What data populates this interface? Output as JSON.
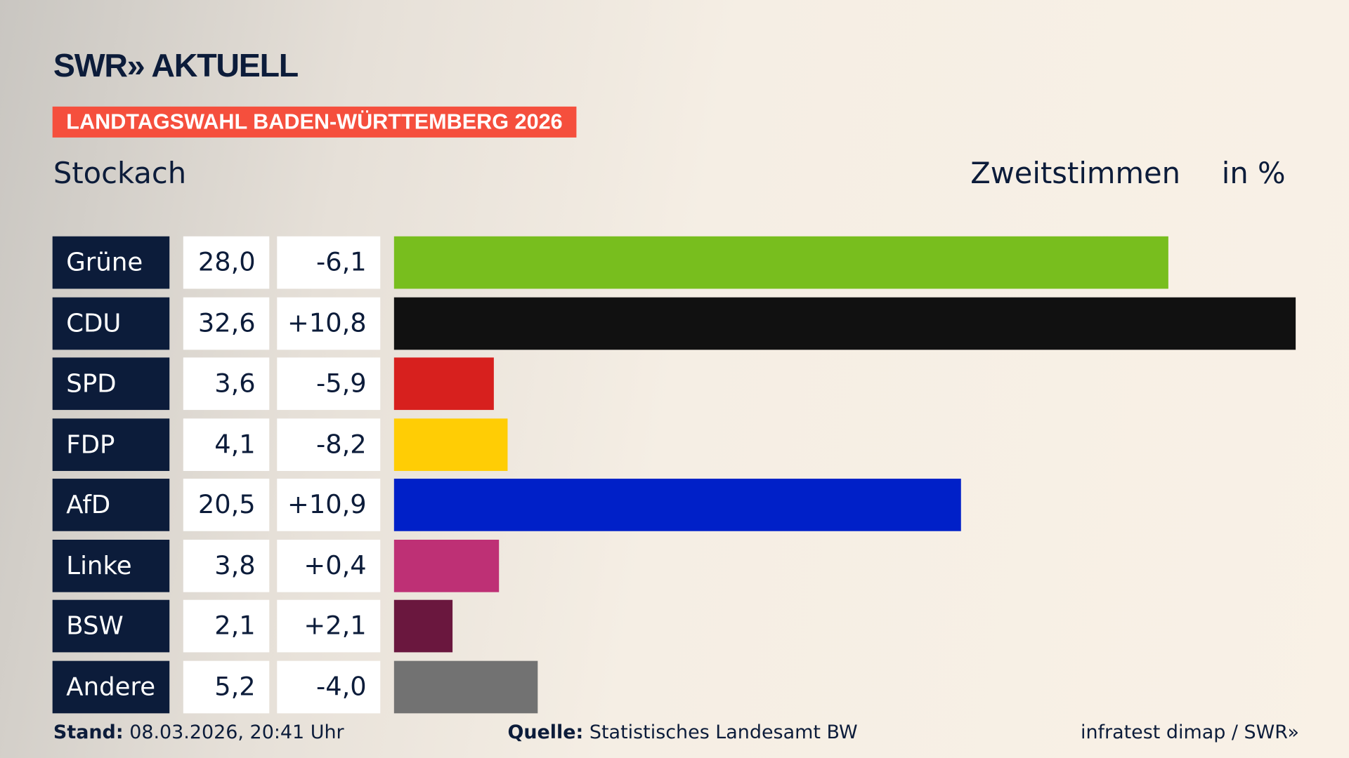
{
  "header": {
    "logo": "SWR» AKTUELL",
    "banner": "LANDTAGSWAHL BADEN-WÜRTTEMBERG 2026",
    "region": "Stockach",
    "measure": "Zweitstimmen",
    "unit": "in %"
  },
  "chart_data": {
    "type": "bar",
    "orientation": "horizontal",
    "categories": [
      "Grüne",
      "CDU",
      "SPD",
      "FDP",
      "AfD",
      "Linke",
      "BSW",
      "Andere"
    ],
    "values": [
      28.0,
      32.6,
      3.6,
      4.1,
      20.5,
      3.8,
      2.1,
      5.2
    ],
    "value_labels": [
      "28,0",
      "32,6",
      "3,6",
      "4,1",
      "20,5",
      "3,8",
      "2,1",
      "5,2"
    ],
    "diff_labels": [
      "-6,1",
      "+10,8",
      "-5,9",
      "-8,2",
      "+10,9",
      "+0,4",
      "+2,1",
      "-4,0"
    ],
    "colors": [
      "#78be1e",
      "#111111",
      "#d7201e",
      "#ffcd05",
      "#0020c8",
      "#be3075",
      "#6a173e",
      "#727272"
    ],
    "xlim": [
      0,
      32.6
    ]
  },
  "footer": {
    "stand_label": "Stand:",
    "stand": "08.03.2026, 20:41 Uhr",
    "source_label": "Quelle:",
    "source": "Statistisches Landesamt BW",
    "credit": "infratest dimap / SWR»"
  }
}
